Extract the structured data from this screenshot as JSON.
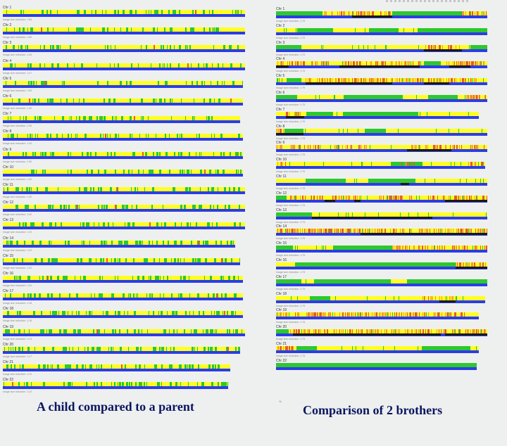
{
  "left_panel": {
    "caption": "A child compared to a parent",
    "colors": {
      "yellow": "#ffff22",
      "green": "#2ec82e",
      "red": "#e85a2a",
      "blue": "#2b3ce8"
    },
    "rows": [
      {
        "label": "Chr 1",
        "note": "Image size reduction: 1:55",
        "length": 1.0,
        "green_count": 42,
        "red_count": 1
      },
      {
        "label": "Chr 2",
        "note": "Image size reduction: 1:55",
        "length": 1.0,
        "green_count": 40,
        "red_count": 1
      },
      {
        "label": "Chr 3",
        "note": "Image size reduction: 1:45",
        "length": 1.0,
        "green_count": 38,
        "red_count": 1
      },
      {
        "label": "Chr 4",
        "note": "Image size reduction: 1:47",
        "length": 1.0,
        "green_count": 36,
        "red_count": 1
      },
      {
        "label": "Chr 5",
        "note": "Image size reduction: 1:59",
        "length": 0.99,
        "green_count": 34,
        "red_count": 1
      },
      {
        "label": "Chr 6",
        "note": "Image size reduction: 1:40",
        "length": 0.99,
        "green_count": 40,
        "red_count": 2
      },
      {
        "label": "Chr 7",
        "note": "Image size reduction: 1:36",
        "length": 0.98,
        "green_count": 44,
        "red_count": 1
      },
      {
        "label": "Chr 8",
        "note": "Image size reduction: 1:34",
        "length": 0.99,
        "green_count": 46,
        "red_count": 1
      },
      {
        "label": "Chr 9",
        "note": "Image size reduction: 1:30",
        "length": 0.99,
        "green_count": 48,
        "red_count": 1
      },
      {
        "label": "Chr 10",
        "note": "Image size reduction: 1:30",
        "length": 0.99,
        "green_count": 46,
        "red_count": 1
      },
      {
        "label": "Chr 11",
        "note": "Image size reduction: 1:30",
        "length": 1.0,
        "green_count": 50,
        "red_count": 1
      },
      {
        "label": "Chr 12",
        "note": "Image size reduction: 1:30",
        "length": 1.0,
        "green_count": 52,
        "red_count": 2
      },
      {
        "label": "Chr 13",
        "note": "Image size reduction: 1:23",
        "length": 1.0,
        "green_count": 54,
        "red_count": 1
      },
      {
        "label": "Chr 14",
        "note": "Image size reduction: 1:22",
        "length": 0.96,
        "green_count": 56,
        "red_count": 1
      },
      {
        "label": "Chr 15",
        "note": "Image size reduction: 1:20",
        "length": 0.98,
        "green_count": 58,
        "red_count": 2
      },
      {
        "label": "Chr 16",
        "note": "Image size reduction: 1:20",
        "length": 0.99,
        "green_count": 58,
        "red_count": 1
      },
      {
        "label": "Chr 17",
        "note": "Image size reduction: 1:18",
        "length": 0.99,
        "green_count": 60,
        "red_count": 1
      },
      {
        "label": "Chr 18",
        "note": "Image size reduction: 1:18",
        "length": 0.99,
        "green_count": 60,
        "red_count": 1
      },
      {
        "label": "Chr 19",
        "note": "Image size reduction: 1:13",
        "length": 1.0,
        "green_count": 66,
        "red_count": 1
      },
      {
        "label": "Chr 20",
        "note": "Image size reduction: 1:17",
        "length": 0.98,
        "green_count": 64,
        "red_count": 1
      },
      {
        "label": "Chr 21",
        "note": "Image size reduction: 1:10",
        "length": 0.94,
        "green_count": 58,
        "red_count": 1
      },
      {
        "label": "Chr 22",
        "note": "Image size reduction: 1:10",
        "length": 0.93,
        "green_count": 60,
        "red_count": 1
      }
    ]
  },
  "right_panel": {
    "caption": "Comparison of 2 brothers",
    "colors": {
      "yellow": "#ffff22",
      "green": "#2ec82e",
      "red": "#e85a2a",
      "orange": "#f2a020",
      "blue": "#2b3ce8",
      "black": "#1a1a1a"
    },
    "rows": [
      {
        "label": "Chr 1",
        "note": "Image size reduction: 1:75",
        "length": 1.0,
        "green_blocks": [
          [
            0.0,
            0.22
          ],
          [
            0.55,
            0.88
          ]
        ],
        "red_blocks": [
          [
            0.22,
            0.55
          ],
          [
            0.88,
            1.0
          ]
        ],
        "black_blocks": [
          [
            0.36,
            0.55
          ]
        ]
      },
      {
        "label": "Chr 2",
        "note": "Image size reduction: 1:75",
        "length": 1.0,
        "green_blocks": [
          [
            0.1,
            0.27
          ],
          [
            0.44,
            0.58
          ],
          [
            0.67,
            1.0
          ]
        ],
        "red_blocks": [],
        "black_blocks": []
      },
      {
        "label": "Chr 3",
        "note": "Image size reduction: 1:75",
        "length": 1.0,
        "green_blocks": [
          [
            0.0,
            0.12
          ],
          [
            0.92,
            1.0
          ]
        ],
        "red_blocks": [
          [
            0.7,
            0.88
          ]
        ],
        "black_blocks": [
          [
            0.7,
            0.88
          ]
        ]
      },
      {
        "label": "Chr 4",
        "note": "Image size reduction: 1:75",
        "length": 1.0,
        "green_blocks": [
          [
            0.7,
            0.78
          ]
        ],
        "red_blocks": [
          [
            0.0,
            0.25
          ],
          [
            0.32,
            0.68
          ],
          [
            0.8,
            1.0
          ]
        ],
        "black_blocks": [
          [
            0.0,
            0.06
          ],
          [
            0.3,
            0.68
          ],
          [
            0.82,
            0.92
          ]
        ]
      },
      {
        "label": "Chr 5",
        "note": "Image size reduction: 1:75",
        "length": 1.0,
        "green_blocks": [
          [
            0.05,
            0.12
          ]
        ],
        "red_blocks": [
          [
            0.14,
            0.95
          ]
        ],
        "black_blocks": [
          [
            0.14,
            0.55
          ],
          [
            0.7,
            0.82
          ]
        ]
      },
      {
        "label": "Chr 6",
        "note": "Image size reduction: 1:75",
        "length": 1.0,
        "green_blocks": [
          [
            0.0,
            0.1
          ],
          [
            0.32,
            0.6
          ],
          [
            0.72,
            0.86
          ]
        ],
        "red_blocks": [
          [
            0.9,
            1.0
          ]
        ],
        "black_blocks": []
      },
      {
        "label": "Chr 7",
        "note": "Image size reduction: 1:75",
        "length": 0.96,
        "green_blocks": [
          [
            0.15,
            0.28
          ],
          [
            0.33,
            0.7
          ]
        ],
        "red_blocks": [
          [
            0.05,
            0.14
          ]
        ],
        "black_blocks": [
          [
            0.05,
            0.14
          ]
        ]
      },
      {
        "label": "Chr 8",
        "note": "Image size reduction: 1:75",
        "length": 1.0,
        "green_blocks": [
          [
            0.04,
            0.13
          ],
          [
            0.42,
            0.52
          ]
        ],
        "red_blocks": [
          [
            0.0,
            0.04
          ]
        ],
        "black_blocks": [
          [
            0.0,
            0.13
          ]
        ]
      },
      {
        "label": "Chr 9",
        "note": "Image size reduction: 1:75",
        "length": 1.0,
        "green_blocks": [],
        "red_blocks": [
          [
            0.0,
            0.04
          ],
          [
            0.07,
            0.2
          ],
          [
            0.25,
            0.44
          ],
          [
            0.62,
            0.88
          ],
          [
            0.92,
            1.0
          ]
        ],
        "black_blocks": [
          [
            0.62,
            0.83
          ]
        ]
      },
      {
        "label": "Chr 10",
        "note": "Image size reduction: 1:75",
        "length": 0.99,
        "green_blocks": [
          [
            0.55,
            0.7
          ]
        ],
        "red_blocks": [
          [
            0.0,
            0.05
          ],
          [
            0.6,
            0.66
          ],
          [
            0.92,
            1.0
          ]
        ],
        "black_blocks": []
      },
      {
        "label": "Chr 11",
        "note": "Image size reduction: 1:75",
        "length": 1.0,
        "green_blocks": [
          [
            0.14,
            0.33
          ],
          [
            0.44,
            0.66
          ]
        ],
        "red_blocks": [],
        "black_blocks": [
          [
            0.59,
            0.63
          ]
        ]
      },
      {
        "label": "Chr 12",
        "note": "Image size reduction: 1:75",
        "length": 1.0,
        "green_blocks": [
          [
            0.0,
            0.05
          ]
        ],
        "red_blocks": [
          [
            0.05,
            0.23
          ],
          [
            0.26,
            0.4
          ],
          [
            0.49,
            0.64
          ],
          [
            0.72,
            1.0
          ]
        ],
        "black_blocks": [
          [
            0.23,
            0.28
          ],
          [
            0.37,
            0.4
          ],
          [
            0.8,
            1.0
          ]
        ]
      },
      {
        "label": "Chr 13",
        "note": "Image size reduction: 1:75",
        "length": 1.0,
        "green_blocks": [
          [
            0.0,
            0.17
          ]
        ],
        "red_blocks": [],
        "black_blocks": [
          [
            0.17,
            0.74
          ]
        ]
      },
      {
        "label": "Chr 14",
        "note": "Image size reduction: 1:75",
        "length": 1.0,
        "green_blocks": [],
        "red_blocks": [
          [
            0.0,
            1.0
          ]
        ],
        "black_blocks": [
          [
            0.4,
            1.0
          ]
        ]
      },
      {
        "label": "Chr 15",
        "note": "Image size reduction: 1:75",
        "length": 1.0,
        "green_blocks": [
          [
            0.0,
            0.08
          ],
          [
            0.27,
            0.55
          ]
        ],
        "red_blocks": [
          [
            0.55,
            1.0
          ]
        ],
        "black_blocks": []
      },
      {
        "label": "Chr 16",
        "note": "Image size reduction: 1:75",
        "length": 1.0,
        "green_blocks": [
          [
            0.09,
            0.85
          ]
        ],
        "red_blocks": [
          [
            0.85,
            1.0
          ]
        ],
        "black_blocks": [
          [
            0.85,
            1.0
          ]
        ]
      },
      {
        "label": "Chr 17",
        "note": "Image size reduction: 1:75",
        "length": 1.0,
        "green_blocks": [
          [
            0.0,
            0.12
          ],
          [
            0.18,
            0.54
          ],
          [
            0.62,
            1.0
          ]
        ],
        "red_blocks": [],
        "black_blocks": []
      },
      {
        "label": "Chr 18",
        "note": "Image size reduction: 1:75",
        "length": 0.99,
        "green_blocks": [
          [
            0.16,
            0.26
          ]
        ],
        "red_blocks": [
          [
            0.7,
            0.86
          ]
        ],
        "black_blocks": [
          [
            0.78,
            0.86
          ]
        ]
      },
      {
        "label": "Chr 19",
        "note": "Image size reduction: 1:75",
        "length": 0.96,
        "green_blocks": [],
        "red_blocks": [
          [
            0.0,
            0.95
          ]
        ],
        "black_blocks": []
      },
      {
        "label": "Chr 20",
        "note": "Image size reduction: 1:75",
        "length": 1.0,
        "green_blocks": [
          [
            0.0,
            0.06
          ]
        ],
        "red_blocks": [
          [
            0.06,
            1.0
          ]
        ],
        "black_blocks": [
          [
            0.08,
            0.78
          ],
          [
            0.8,
            1.0
          ]
        ]
      },
      {
        "label": "Chr 21",
        "note": "Image size reduction: 1:75",
        "length": 0.96,
        "green_blocks": [
          [
            0.1,
            0.2
          ],
          [
            0.72,
            0.96
          ]
        ],
        "red_blocks": [
          [
            0.0,
            0.1
          ]
        ],
        "black_blocks": []
      },
      {
        "label": "Chr 22",
        "note": "",
        "length": 0.95,
        "green_blocks": [
          [
            0.0,
            1.0
          ]
        ],
        "red_blocks": [],
        "black_blocks": []
      }
    ]
  }
}
